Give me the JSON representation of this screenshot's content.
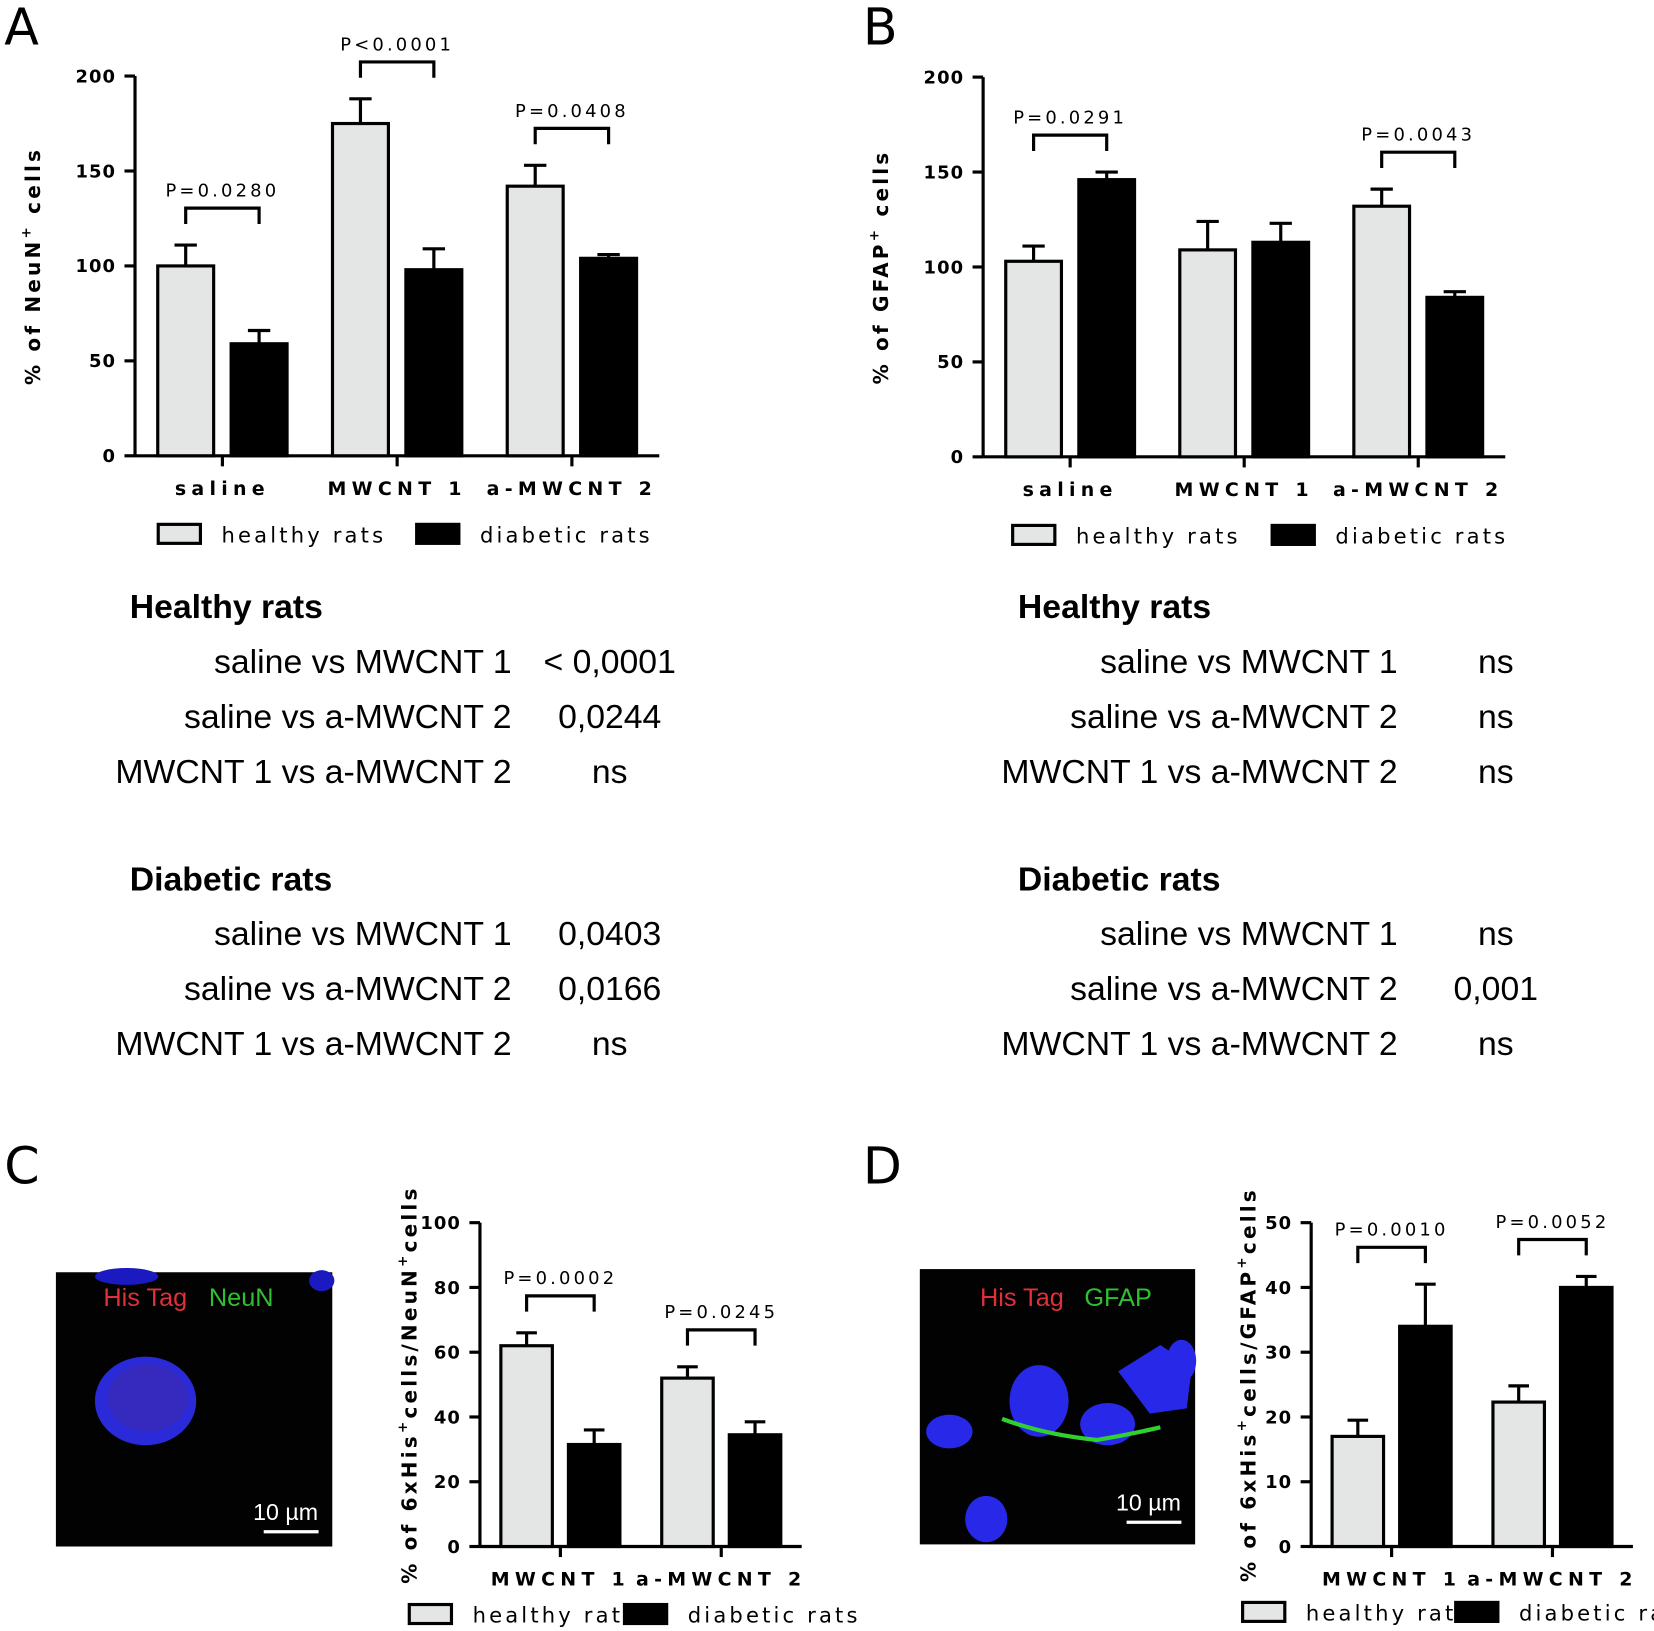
{
  "panel_letters": [
    "A",
    "B",
    "C",
    "D"
  ],
  "chart_data": [
    {
      "type": "bar",
      "ylabel_parts": [
        "% of NeuN",
        "+",
        " cells"
      ],
      "categories": [
        "saline",
        "MWCNT 1",
        "a-MWCNT 2"
      ],
      "series": [
        {
          "name": "healthy rats",
          "color": "#e3e6e4",
          "values": [
            100,
            175,
            142
          ],
          "errors": [
            11,
            13,
            11
          ]
        },
        {
          "name": "diabetic rats",
          "color": "#000000",
          "values": [
            59,
            98,
            104
          ],
          "errors": [
            7,
            11,
            2
          ]
        }
      ],
      "ylim": [
        0,
        200
      ],
      "yticks": [
        0,
        50,
        100,
        150,
        200
      ],
      "annotations": [
        {
          "text": "P=0.0280",
          "category": "saline"
        },
        {
          "text": "P<0.0001",
          "category": "MWCNT 1"
        },
        {
          "text": "P=0.0408",
          "category": "a-MWCNT 2"
        }
      ]
    },
    {
      "type": "bar",
      "ylabel_parts": [
        "% of GFAP",
        "+",
        " cells"
      ],
      "categories": [
        "saline",
        "MWCNT 1",
        "a-MWCNT 2"
      ],
      "series": [
        {
          "name": "healthy rats",
          "color": "#e3e6e4",
          "values": [
            103,
            109,
            132
          ],
          "errors": [
            8,
            15,
            9
          ]
        },
        {
          "name": "diabetic rats",
          "color": "#000000",
          "values": [
            146,
            113,
            84
          ],
          "errors": [
            4,
            10,
            3
          ]
        }
      ],
      "ylim": [
        0,
        200
      ],
      "yticks": [
        0,
        50,
        100,
        150,
        200
      ],
      "annotations": [
        {
          "text": "P=0.0291",
          "category": "saline"
        },
        {
          "text": "P=0.0043",
          "category": "a-MWCNT 2"
        }
      ]
    },
    {
      "type": "bar",
      "ylabel_parts": [
        "% of 6xHis",
        "+",
        "cells/NeuN",
        "+",
        "cells"
      ],
      "categories": [
        "MWCNT 1",
        "a-MWCNT 2"
      ],
      "series": [
        {
          "name": "healthy rats",
          "color": "#e3e6e4",
          "values": [
            62,
            52
          ],
          "errors": [
            4,
            3.5
          ]
        },
        {
          "name": "diabetic rats",
          "color": "#000000",
          "values": [
            31.5,
            34.5
          ],
          "errors": [
            4.5,
            4
          ]
        }
      ],
      "ylim": [
        0,
        100
      ],
      "yticks": [
        0,
        20,
        40,
        60,
        80,
        100
      ],
      "annotations": [
        {
          "text": "P=0.0002",
          "category": "MWCNT 1"
        },
        {
          "text": "P=0.0245",
          "category": "a-MWCNT 2"
        }
      ]
    },
    {
      "type": "bar",
      "ylabel_parts": [
        "% of 6xHis",
        "+",
        "cells/GFAP",
        "+",
        "cells"
      ],
      "categories": [
        "MWCNT 1",
        "a-MWCNT 2"
      ],
      "series": [
        {
          "name": "healthy rats",
          "color": "#e3e6e4",
          "values": [
            17,
            22.3
          ],
          "errors": [
            2.5,
            2.5
          ]
        },
        {
          "name": "diabetic rats",
          "color": "#000000",
          "values": [
            34,
            40
          ],
          "errors": [
            6.5,
            1.7
          ]
        }
      ],
      "ylim": [
        0,
        50
      ],
      "yticks": [
        0,
        10,
        20,
        30,
        40,
        50
      ],
      "annotations": [
        {
          "text": "P=0.0010",
          "category": "MWCNT 1"
        },
        {
          "text": "P=0.0052",
          "category": "a-MWCNT 2"
        }
      ]
    }
  ],
  "tables": [
    {
      "sections": [
        {
          "heading": "Healthy rats",
          "rows": [
            [
              "saline vs MWCNT 1",
              "< 0,0001"
            ],
            [
              "saline vs a-MWCNT 2",
              "0,0244"
            ],
            [
              "MWCNT 1 vs a-MWCNT 2",
              "ns"
            ]
          ]
        },
        {
          "heading": "Diabetic rats",
          "rows": [
            [
              "saline vs MWCNT 1",
              "0,0403"
            ],
            [
              "saline vs a-MWCNT 2",
              "0,0166"
            ],
            [
              "MWCNT 1 vs a-MWCNT 2",
              "ns"
            ]
          ]
        }
      ]
    },
    {
      "sections": [
        {
          "heading": "Healthy rats",
          "rows": [
            [
              "saline vs MWCNT 1",
              "ns"
            ],
            [
              "saline vs a-MWCNT 2",
              "ns"
            ],
            [
              "MWCNT 1 vs a-MWCNT 2",
              "ns"
            ]
          ]
        },
        {
          "heading": "Diabetic rats",
          "rows": [
            [
              "saline vs MWCNT 1",
              "ns"
            ],
            [
              "saline vs a-MWCNT 2",
              "0,001"
            ],
            [
              "MWCNT 1 vs a-MWCNT 2",
              "ns"
            ]
          ]
        }
      ]
    }
  ],
  "micrographs": [
    {
      "stains": [
        "His Tag",
        "NeuN"
      ],
      "scale_bar": "10 µm"
    },
    {
      "stains": [
        "His Tag",
        "GFAP"
      ],
      "scale_bar": "10 µm"
    }
  ]
}
